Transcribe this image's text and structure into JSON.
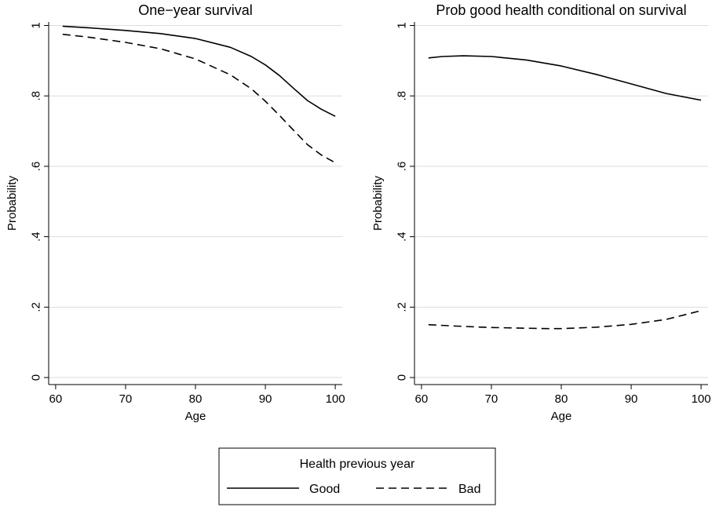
{
  "chart_data": [
    {
      "type": "line",
      "title": "One−year survival",
      "xlabel": "Age",
      "ylabel": "Probability",
      "xlim": [
        59,
        101
      ],
      "ylim": [
        -0.02,
        1.01
      ],
      "xticks": [
        60,
        70,
        80,
        90,
        100
      ],
      "xtick_labels": [
        "60",
        "70",
        "80",
        "90",
        "100"
      ],
      "yticks": [
        0,
        0.2,
        0.4,
        0.6,
        0.8,
        1
      ],
      "ytick_labels": [
        "0",
        ".2",
        ".4",
        ".6",
        ".8",
        "1"
      ],
      "grid": true,
      "series": [
        {
          "name": "Good",
          "style": "solid",
          "x": [
            61,
            65,
            70,
            75,
            80,
            85,
            88,
            90,
            92,
            94,
            96,
            98,
            100
          ],
          "y": [
            0.998,
            0.993,
            0.986,
            0.977,
            0.963,
            0.938,
            0.912,
            0.888,
            0.858,
            0.822,
            0.787,
            0.762,
            0.742
          ]
        },
        {
          "name": "Bad",
          "style": "dashed",
          "x": [
            61,
            65,
            70,
            75,
            80,
            85,
            88,
            90,
            92,
            94,
            96,
            98,
            100
          ],
          "y": [
            0.975,
            0.966,
            0.952,
            0.934,
            0.905,
            0.86,
            0.82,
            0.785,
            0.745,
            0.703,
            0.662,
            0.632,
            0.61
          ]
        }
      ]
    },
    {
      "type": "line",
      "title": "Prob good health conditional on survival",
      "xlabel": "Age",
      "ylabel": "Probability",
      "xlim": [
        59,
        101
      ],
      "ylim": [
        -0.02,
        1.01
      ],
      "xticks": [
        60,
        70,
        80,
        90,
        100
      ],
      "xtick_labels": [
        "60",
        "70",
        "80",
        "90",
        "100"
      ],
      "yticks": [
        0,
        0.2,
        0.4,
        0.6,
        0.8,
        1
      ],
      "ytick_labels": [
        "0",
        ".2",
        ".4",
        ".6",
        ".8",
        "1"
      ],
      "grid": true,
      "series": [
        {
          "name": "Good",
          "style": "solid",
          "x": [
            61,
            63,
            66,
            70,
            75,
            80,
            85,
            90,
            95,
            100
          ],
          "y": [
            0.908,
            0.912,
            0.914,
            0.912,
            0.902,
            0.885,
            0.861,
            0.834,
            0.807,
            0.788
          ]
        },
        {
          "name": "Bad",
          "style": "dashed",
          "x": [
            61,
            65,
            70,
            75,
            78,
            80,
            85,
            90,
            95,
            100
          ],
          "y": [
            0.15,
            0.146,
            0.142,
            0.14,
            0.139,
            0.139,
            0.143,
            0.151,
            0.165,
            0.19
          ]
        }
      ]
    }
  ],
  "legend": {
    "title": "Health previous year",
    "position": "bottom-center",
    "items": [
      {
        "label": "Good",
        "style": "solid"
      },
      {
        "label": "Bad",
        "style": "dashed"
      }
    ]
  },
  "colors": {
    "line": "#000000",
    "grid": "#dddddd",
    "frame": "#000000",
    "background": "#ffffff"
  }
}
